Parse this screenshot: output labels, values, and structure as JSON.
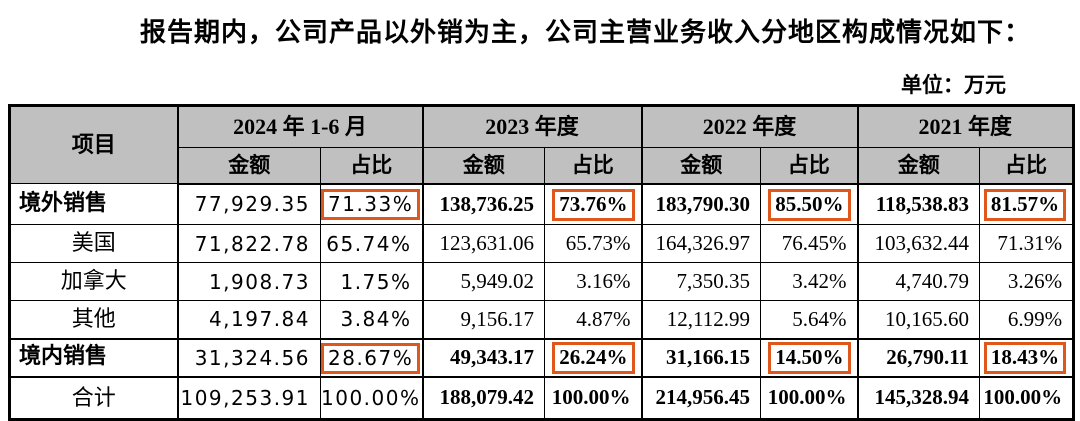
{
  "title": "报告期内，公司产品以外销为主，公司主营业务收入分地区构成情况如下：",
  "unit_label": "单位：万元",
  "colors": {
    "header_background": "#c0c0c0",
    "highlight_box": "#e0571c",
    "text": "#000000"
  },
  "table": {
    "item_header": "项目",
    "periods": [
      "2024 年 1-6 月",
      "2023 年度",
      "2022 年度",
      "2021 年度"
    ],
    "sub_headers": {
      "amount": "金额",
      "ratio": "占比"
    },
    "rows": [
      {
        "label": "境外销售",
        "cells": [
          "77,929.35",
          "71.33%",
          "138,736.25",
          "73.76%",
          "183,790.30",
          "85.50%",
          "118,538.83",
          "81.57%"
        ]
      },
      {
        "label": "美国",
        "cells": [
          "71,822.78",
          "65.74%",
          "123,631.06",
          "65.73%",
          "164,326.97",
          "76.45%",
          "103,632.44",
          "71.31%"
        ]
      },
      {
        "label": "加拿大",
        "cells": [
          "1,908.73",
          "1.75%",
          "5,949.02",
          "3.16%",
          "7,350.35",
          "3.42%",
          "4,740.79",
          "3.26%"
        ]
      },
      {
        "label": "其他",
        "cells": [
          "4,197.84",
          "3.84%",
          "9,156.17",
          "4.87%",
          "12,112.99",
          "5.64%",
          "10,165.60",
          "6.99%"
        ]
      },
      {
        "label": "境内销售",
        "cells": [
          "31,324.56",
          "28.67%",
          "49,343.17",
          "26.24%",
          "31,166.15",
          "14.50%",
          "26,790.11",
          "18.43%"
        ]
      },
      {
        "label": "合计",
        "cells": [
          "109,253.91",
          "100.00%",
          "188,079.42",
          "100.00%",
          "214,956.45",
          "100.00%",
          "145,328.94",
          "100.00%"
        ]
      }
    ]
  }
}
